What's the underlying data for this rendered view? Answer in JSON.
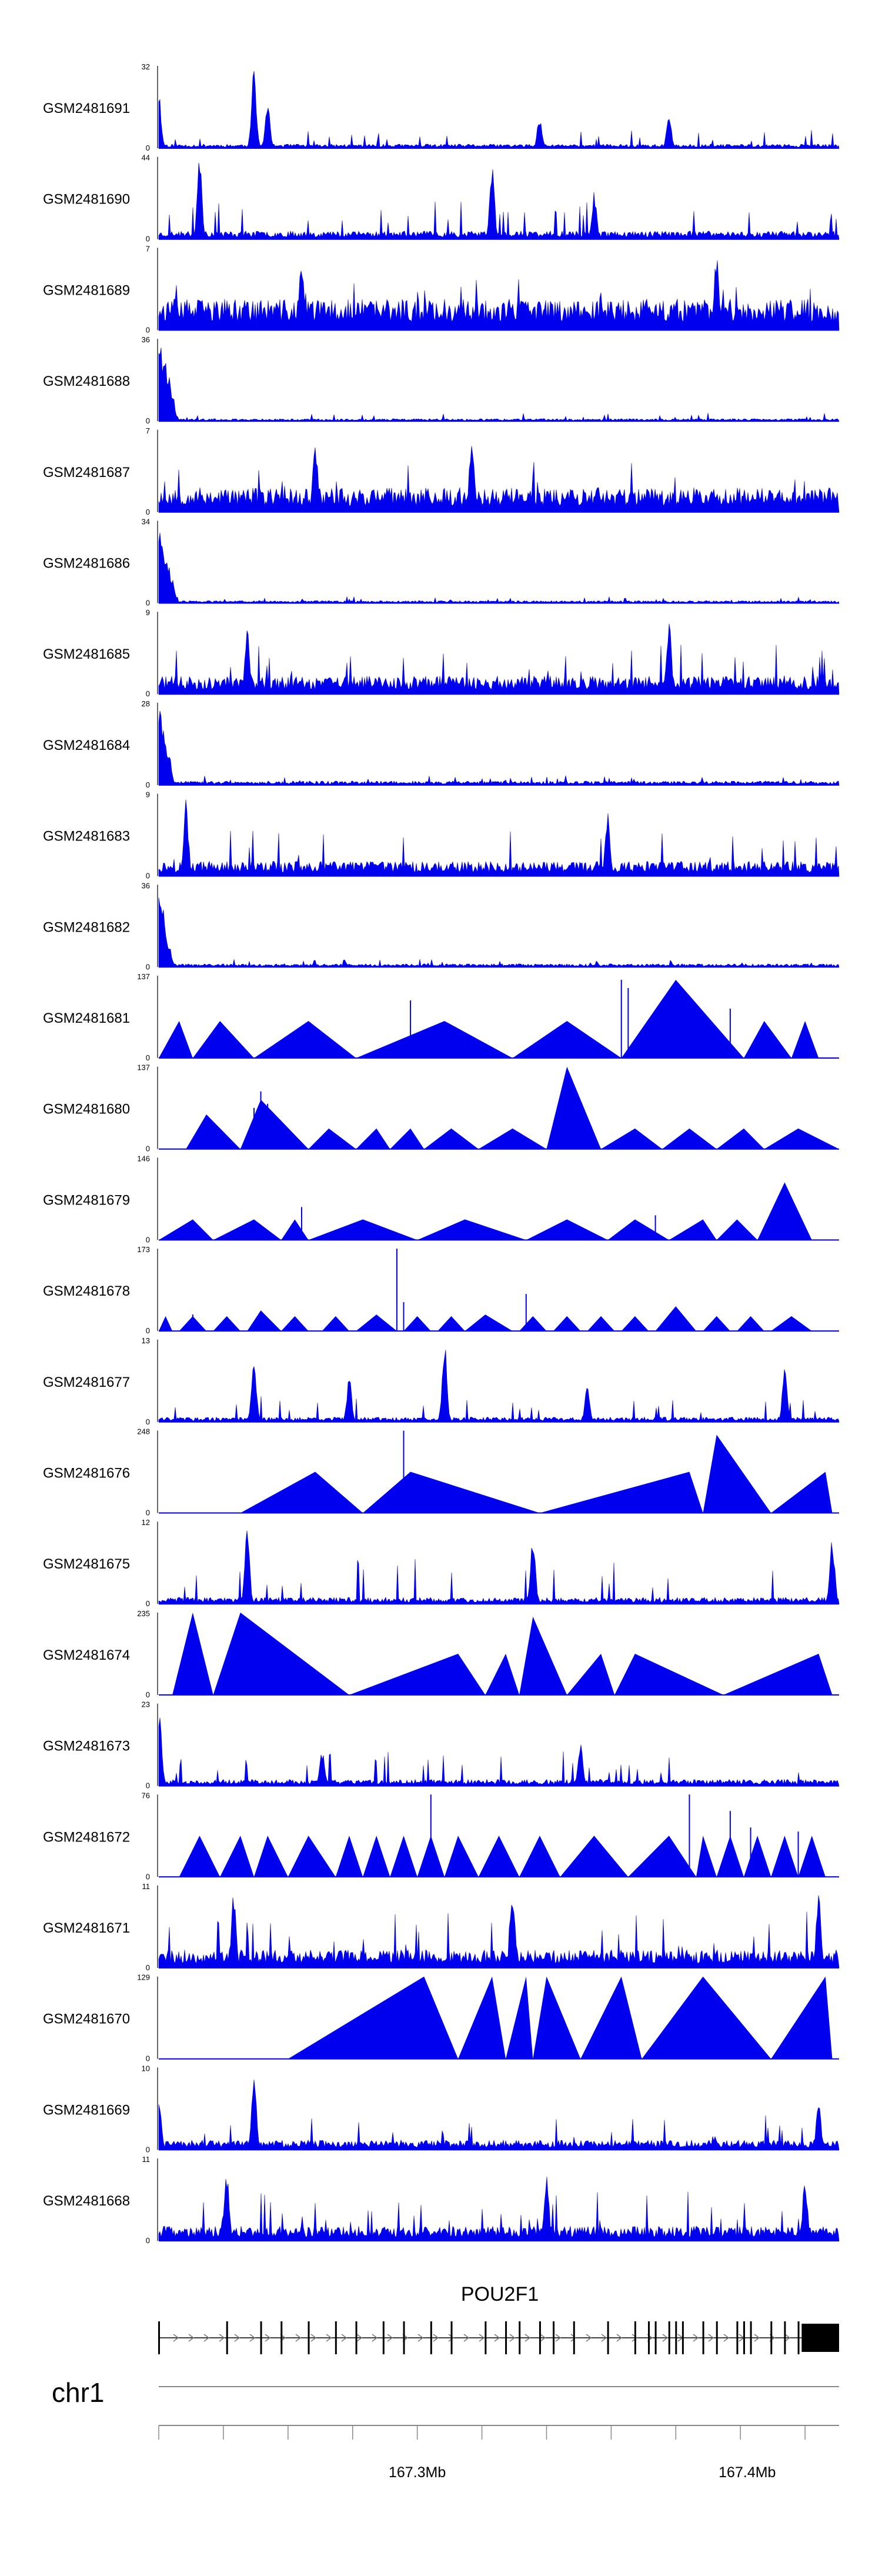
{
  "chart_data": {
    "type": "area",
    "title": "",
    "tracks": [
      {
        "name": "GSM2481691",
        "ymax": "32",
        "ymin": "0",
        "style": "dense",
        "seed": 11,
        "base": 0.05,
        "spike": 0.22,
        "peaks": [
          [
            0.0,
            0.7
          ],
          [
            0.14,
            1.0
          ],
          [
            0.16,
            0.55
          ],
          [
            0.56,
            0.4
          ],
          [
            0.75,
            0.4
          ]
        ]
      },
      {
        "name": "GSM2481690",
        "ymax": "44",
        "ymin": "0",
        "style": "dense",
        "seed": 23,
        "base": 0.1,
        "spike": 0.48,
        "peaks": [
          [
            0.06,
            1.0
          ],
          [
            0.49,
            0.9
          ],
          [
            0.64,
            0.6
          ]
        ]
      },
      {
        "name": "GSM2481689",
        "ymax": "7",
        "ymin": "0",
        "style": "dense",
        "seed": 37,
        "base": 0.38,
        "spike": 0.62,
        "peaks": [
          [
            0.82,
            0.95
          ],
          [
            0.21,
            0.85
          ]
        ]
      },
      {
        "name": "GSM2481688",
        "ymax": "36",
        "ymin": "0",
        "style": "dense",
        "seed": 41,
        "base": 0.03,
        "spike": 0.1,
        "peaks": [
          [
            0.002,
            1.0
          ],
          [
            0.006,
            0.85
          ],
          [
            0.01,
            0.75
          ],
          [
            0.015,
            0.55
          ],
          [
            0.02,
            0.35
          ]
        ]
      },
      {
        "name": "GSM2481687",
        "ymax": "7",
        "ymin": "0",
        "style": "dense",
        "seed": 53,
        "base": 0.3,
        "spike": 0.62,
        "peaks": [
          [
            0.23,
            0.9
          ],
          [
            0.46,
            0.95
          ]
        ]
      },
      {
        "name": "GSM2481686",
        "ymax": "34",
        "ymin": "0",
        "style": "dense",
        "seed": 61,
        "base": 0.03,
        "spike": 0.1,
        "peaks": [
          [
            0.002,
            1.0
          ],
          [
            0.006,
            0.8
          ],
          [
            0.01,
            0.6
          ],
          [
            0.015,
            0.45
          ],
          [
            0.02,
            0.3
          ]
        ]
      },
      {
        "name": "GSM2481685",
        "ymax": "9",
        "ymin": "0",
        "style": "dense",
        "seed": 71,
        "base": 0.22,
        "spike": 0.62,
        "peaks": [
          [
            0.75,
            0.95
          ],
          [
            0.13,
            0.8
          ]
        ]
      },
      {
        "name": "GSM2481684",
        "ymax": "28",
        "ymin": "0",
        "style": "dense",
        "seed": 83,
        "base": 0.05,
        "spike": 0.12,
        "peaks": [
          [
            0.002,
            1.0
          ],
          [
            0.006,
            0.7
          ],
          [
            0.01,
            0.55
          ],
          [
            0.015,
            0.4
          ]
        ]
      },
      {
        "name": "GSM2481683",
        "ymax": "9",
        "ymin": "0",
        "style": "dense",
        "seed": 97,
        "base": 0.18,
        "spike": 0.58,
        "peaks": [
          [
            0.04,
            0.95
          ],
          [
            0.66,
            0.8
          ]
        ]
      },
      {
        "name": "GSM2481682",
        "ymax": "36",
        "ymin": "0",
        "style": "dense",
        "seed": 101,
        "base": 0.04,
        "spike": 0.1,
        "peaks": [
          [
            0.002,
            1.0
          ],
          [
            0.006,
            0.75
          ],
          [
            0.01,
            0.5
          ],
          [
            0.015,
            0.3
          ]
        ]
      },
      {
        "name": "GSM2481681",
        "ymax": "137",
        "ymin": "0",
        "style": "tri",
        "tris": [
          [
            0.0,
            0.03,
            0.05,
            0.45
          ],
          [
            0.05,
            0.09,
            0.14,
            0.45
          ],
          [
            0.14,
            0.22,
            0.29,
            0.45
          ],
          [
            0.29,
            0.42,
            0.52,
            0.45
          ],
          [
            0.52,
            0.6,
            0.68,
            0.45
          ],
          [
            0.68,
            0.76,
            0.86,
            0.95
          ],
          [
            0.86,
            0.89,
            0.93,
            0.45
          ],
          [
            0.93,
            0.95,
            0.97,
            0.45
          ]
        ],
        "spikes": [
          [
            0.37,
            0.7
          ],
          [
            0.68,
            0.95
          ],
          [
            0.69,
            0.85
          ],
          [
            0.84,
            0.6
          ]
        ]
      },
      {
        "name": "GSM2481680",
        "ymax": "137",
        "ymin": "0",
        "style": "tri",
        "tris": [
          [
            0.04,
            0.07,
            0.12,
            0.42
          ],
          [
            0.12,
            0.15,
            0.22,
            0.6
          ],
          [
            0.22,
            0.25,
            0.29,
            0.25
          ],
          [
            0.29,
            0.32,
            0.34,
            0.25
          ],
          [
            0.34,
            0.37,
            0.39,
            0.25
          ],
          [
            0.39,
            0.43,
            0.47,
            0.25
          ],
          [
            0.47,
            0.52,
            0.57,
            0.25
          ],
          [
            0.57,
            0.6,
            0.65,
            1.0
          ],
          [
            0.65,
            0.7,
            0.74,
            0.25
          ],
          [
            0.74,
            0.78,
            0.82,
            0.25
          ],
          [
            0.82,
            0.86,
            0.89,
            0.25
          ],
          [
            0.89,
            0.94,
            1.0,
            0.25
          ]
        ],
        "spikes": [
          [
            0.14,
            0.5
          ],
          [
            0.15,
            0.7
          ],
          [
            0.16,
            0.55
          ]
        ]
      },
      {
        "name": "GSM2481679",
        "ymax": "146",
        "ymin": "0",
        "style": "tri",
        "tris": [
          [
            0.0,
            0.05,
            0.08,
            0.25
          ],
          [
            0.08,
            0.14,
            0.18,
            0.25
          ],
          [
            0.18,
            0.2,
            0.22,
            0.25
          ],
          [
            0.22,
            0.3,
            0.38,
            0.25
          ],
          [
            0.38,
            0.45,
            0.54,
            0.25
          ],
          [
            0.54,
            0.6,
            0.66,
            0.25
          ],
          [
            0.66,
            0.7,
            0.75,
            0.25
          ],
          [
            0.75,
            0.8,
            0.82,
            0.25
          ],
          [
            0.82,
            0.85,
            0.88,
            0.25
          ],
          [
            0.88,
            0.92,
            0.96,
            0.7
          ]
        ],
        "spikes": [
          [
            0.21,
            0.4
          ],
          [
            0.73,
            0.3
          ]
        ]
      },
      {
        "name": "GSM2481678",
        "ymax": "173",
        "ymin": "0",
        "style": "tri",
        "tris": [
          [
            0.0,
            0.01,
            0.02,
            0.18
          ],
          [
            0.03,
            0.05,
            0.07,
            0.18
          ],
          [
            0.08,
            0.1,
            0.12,
            0.18
          ],
          [
            0.13,
            0.15,
            0.18,
            0.25
          ],
          [
            0.18,
            0.2,
            0.22,
            0.18
          ],
          [
            0.24,
            0.26,
            0.28,
            0.18
          ],
          [
            0.29,
            0.32,
            0.35,
            0.2
          ],
          [
            0.36,
            0.38,
            0.4,
            0.18
          ],
          [
            0.41,
            0.43,
            0.45,
            0.18
          ],
          [
            0.45,
            0.48,
            0.52,
            0.2
          ],
          [
            0.53,
            0.55,
            0.57,
            0.18
          ],
          [
            0.58,
            0.6,
            0.62,
            0.18
          ],
          [
            0.63,
            0.65,
            0.67,
            0.18
          ],
          [
            0.68,
            0.7,
            0.72,
            0.18
          ],
          [
            0.73,
            0.76,
            0.79,
            0.3
          ],
          [
            0.8,
            0.82,
            0.84,
            0.18
          ],
          [
            0.85,
            0.87,
            0.89,
            0.18
          ],
          [
            0.9,
            0.93,
            0.96,
            0.18
          ]
        ],
        "spikes": [
          [
            0.35,
            1.0
          ],
          [
            0.36,
            0.35
          ],
          [
            0.54,
            0.45
          ],
          [
            0.05,
            0.2
          ]
        ]
      },
      {
        "name": "GSM2481677",
        "ymax": "13",
        "ymin": "0",
        "style": "dense",
        "seed": 131,
        "base": 0.06,
        "spike": 0.32,
        "peaks": [
          [
            0.14,
            0.85
          ],
          [
            0.42,
            1.0
          ],
          [
            0.92,
            0.65
          ],
          [
            0.28,
            0.55
          ],
          [
            0.63,
            0.5
          ]
        ]
      },
      {
        "name": "GSM2481676",
        "ymax": "248",
        "ymin": "0",
        "style": "tri",
        "tris": [
          [
            0.12,
            0.23,
            0.3,
            0.5
          ],
          [
            0.3,
            0.37,
            0.56,
            0.5
          ],
          [
            0.56,
            0.78,
            0.8,
            0.5
          ],
          [
            0.8,
            0.82,
            0.9,
            0.95
          ],
          [
            0.9,
            0.98,
            0.99,
            0.5
          ]
        ],
        "spikes": [
          [
            0.36,
            1.0
          ]
        ]
      },
      {
        "name": "GSM2481675",
        "ymax": "12",
        "ymin": "0",
        "style": "dense",
        "seed": 151,
        "base": 0.08,
        "spike": 0.55,
        "peaks": [
          [
            0.13,
            0.9
          ],
          [
            0.55,
            0.88
          ],
          [
            0.99,
            0.85
          ]
        ]
      },
      {
        "name": "GSM2481674",
        "ymax": "235",
        "ymin": "0",
        "style": "tri",
        "tris": [
          [
            0.02,
            0.05,
            0.08,
            1.0
          ],
          [
            0.08,
            0.12,
            0.28,
            1.0
          ],
          [
            0.28,
            0.44,
            0.48,
            0.5
          ],
          [
            0.48,
            0.51,
            0.53,
            0.5
          ],
          [
            0.53,
            0.55,
            0.6,
            0.95
          ],
          [
            0.6,
            0.65,
            0.67,
            0.5
          ],
          [
            0.67,
            0.7,
            0.83,
            0.5
          ],
          [
            0.83,
            0.97,
            0.99,
            0.5
          ]
        ],
        "spikes": []
      },
      {
        "name": "GSM2481673",
        "ymax": "23",
        "ymin": "0",
        "style": "dense",
        "seed": 167,
        "base": 0.08,
        "spike": 0.42,
        "peaks": [
          [
            0.001,
            1.0
          ],
          [
            0.62,
            0.55
          ],
          [
            0.24,
            0.45
          ]
        ]
      },
      {
        "name": "GSM2481672",
        "ymax": "76",
        "ymin": "0",
        "style": "tri",
        "tris": [
          [
            0.03,
            0.06,
            0.09,
            0.5
          ],
          [
            0.09,
            0.12,
            0.14,
            0.5
          ],
          [
            0.14,
            0.16,
            0.19,
            0.5
          ],
          [
            0.19,
            0.22,
            0.26,
            0.5
          ],
          [
            0.26,
            0.28,
            0.3,
            0.5
          ],
          [
            0.3,
            0.32,
            0.34,
            0.5
          ],
          [
            0.34,
            0.36,
            0.38,
            0.5
          ],
          [
            0.38,
            0.4,
            0.42,
            0.5
          ],
          [
            0.42,
            0.44,
            0.47,
            0.5
          ],
          [
            0.47,
            0.5,
            0.53,
            0.5
          ],
          [
            0.53,
            0.56,
            0.59,
            0.5
          ],
          [
            0.59,
            0.64,
            0.69,
            0.5
          ],
          [
            0.69,
            0.75,
            0.79,
            0.5
          ],
          [
            0.79,
            0.8,
            0.82,
            0.5
          ],
          [
            0.82,
            0.84,
            0.86,
            0.5
          ],
          [
            0.86,
            0.88,
            0.9,
            0.5
          ],
          [
            0.9,
            0.92,
            0.94,
            0.5
          ],
          [
            0.94,
            0.96,
            0.98,
            0.5
          ]
        ],
        "spikes": [
          [
            0.4,
            1.0
          ],
          [
            0.78,
            1.0
          ],
          [
            0.84,
            0.8
          ],
          [
            0.87,
            0.6
          ],
          [
            0.94,
            0.55
          ]
        ]
      },
      {
        "name": "GSM2481671",
        "ymax": "11",
        "ymin": "0",
        "style": "dense",
        "seed": 191,
        "base": 0.22,
        "spike": 0.72,
        "peaks": [
          [
            0.11,
            0.9
          ],
          [
            0.52,
            0.95
          ],
          [
            0.97,
            0.95
          ]
        ]
      },
      {
        "name": "GSM2481670",
        "ymax": "129",
        "ymin": "0",
        "style": "tri",
        "tris": [
          [
            0.19,
            0.39,
            0.44,
            1.0
          ],
          [
            0.44,
            0.49,
            0.51,
            1.0
          ],
          [
            0.51,
            0.54,
            0.55,
            1.0
          ],
          [
            0.55,
            0.57,
            0.62,
            1.0
          ],
          [
            0.62,
            0.68,
            0.71,
            1.0
          ],
          [
            0.71,
            0.8,
            0.9,
            1.0
          ],
          [
            0.9,
            0.98,
            0.99,
            1.0
          ]
        ],
        "spikes": []
      },
      {
        "name": "GSM2481669",
        "ymax": "10",
        "ymin": "0",
        "style": "dense",
        "seed": 211,
        "base": 0.12,
        "spike": 0.42,
        "peaks": [
          [
            0.14,
            1.0
          ],
          [
            0.0,
            0.7
          ],
          [
            0.97,
            0.6
          ]
        ]
      },
      {
        "name": "GSM2481668",
        "ymax": "11",
        "ymin": "0",
        "style": "dense",
        "seed": 223,
        "base": 0.18,
        "spike": 0.6,
        "peaks": [
          [
            0.1,
            0.85
          ],
          [
            0.57,
            0.8
          ],
          [
            0.95,
            0.8
          ]
        ]
      }
    ],
    "gene": {
      "name": "POU2F1",
      "exons": [
        0.0,
        0.1,
        0.15,
        0.18,
        0.22,
        0.26,
        0.29,
        0.33,
        0.36,
        0.4,
        0.43,
        0.48,
        0.51,
        0.53,
        0.56,
        0.58,
        0.61,
        0.66,
        0.7,
        0.72,
        0.73,
        0.75,
        0.76,
        0.77,
        0.8,
        0.82,
        0.85,
        0.86,
        0.87,
        0.9,
        0.92,
        0.94
      ],
      "utr_start": 0.945,
      "utr_end": 1.0
    },
    "axis": {
      "chromosome": "chr1",
      "ticks": [
        0.095,
        0.19,
        0.285,
        0.38,
        0.475,
        0.57,
        0.665,
        0.76,
        0.855,
        0.95
      ],
      "labels": [
        {
          "text": "167.3Mb",
          "pos": 0.38
        },
        {
          "text": "167.4Mb",
          "pos": 0.865
        }
      ]
    },
    "colors": {
      "signal": "#0000ee",
      "axis": "#000000",
      "gene": "#000000",
      "genome_axis": "#888888"
    }
  }
}
